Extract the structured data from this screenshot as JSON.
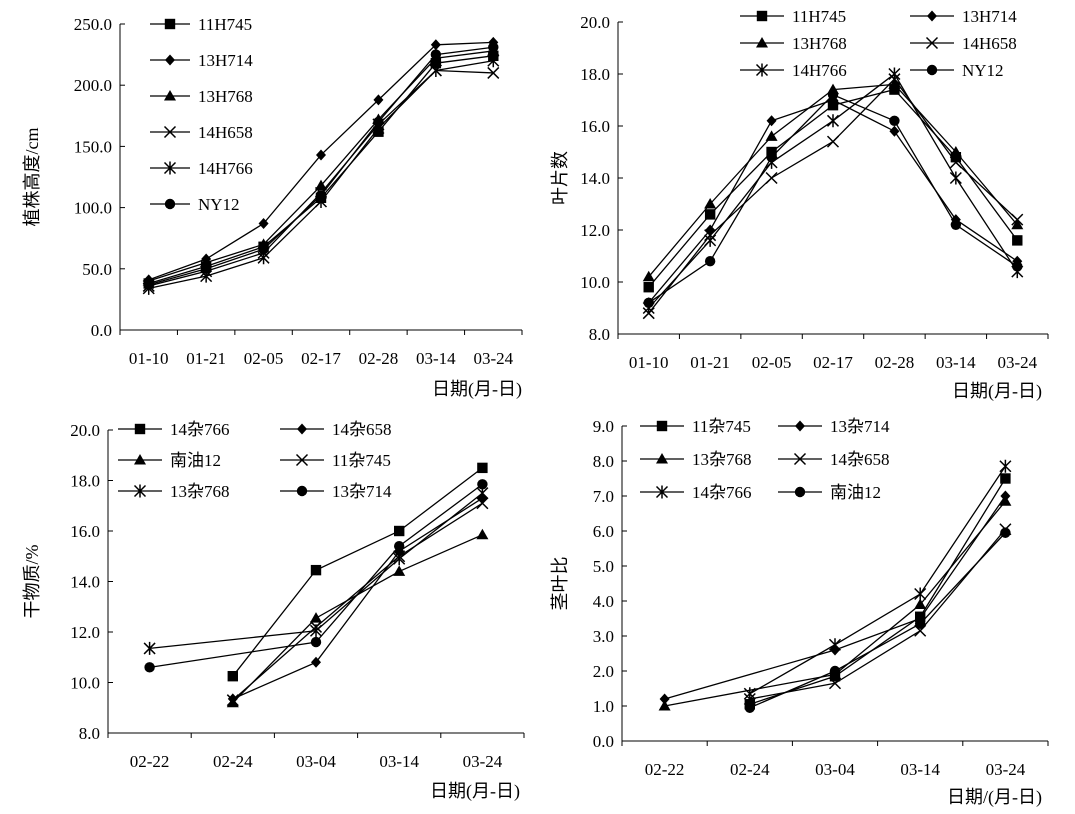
{
  "chart_data": [
    {
      "type": "line",
      "xlabel": "日期(月-日)",
      "ylabel": "植株高度/cm",
      "categories": [
        "01-10",
        "01-21",
        "02-05",
        "02-17",
        "02-28",
        "03-14",
        "03-24"
      ],
      "ylim": [
        0,
        250
      ],
      "yticks": [
        "0.0",
        "50.0",
        "100.0",
        "150.0",
        "200.0",
        "250.0"
      ],
      "grid": false,
      "legend": "top-left",
      "series": [
        {
          "name": "11H745",
          "marker": "square",
          "values": [
            38,
            52,
            68,
            108,
            162,
            218,
            224
          ]
        },
        {
          "name": "13H714",
          "marker": "diamond",
          "values": [
            41,
            58,
            87,
            143,
            188,
            233,
            235
          ]
        },
        {
          "name": "13H768",
          "marker": "triangle",
          "values": [
            40,
            55,
            70,
            118,
            172,
            222,
            228
          ]
        },
        {
          "name": "14H658",
          "marker": "x",
          "values": [
            36,
            48,
            63,
            112,
            168,
            212,
            210
          ]
        },
        {
          "name": "14H766",
          "marker": "star",
          "values": [
            34,
            44,
            59,
            105,
            165,
            212,
            220
          ]
        },
        {
          "name": "NY12",
          "marker": "circle",
          "values": [
            37,
            50,
            66,
            110,
            170,
            225,
            231
          ]
        }
      ]
    },
    {
      "type": "line",
      "xlabel": "日期(月-日)",
      "ylabel": "叶片数",
      "categories": [
        "01-10",
        "01-21",
        "02-05",
        "02-17",
        "02-28",
        "03-14",
        "03-24"
      ],
      "ylim": [
        8,
        20
      ],
      "yticks": [
        "8.0",
        "10.0",
        "12.0",
        "14.0",
        "16.0",
        "18.0",
        "20.0"
      ],
      "grid": false,
      "legend": "top",
      "series": [
        {
          "name": "11H745",
          "marker": "square",
          "values": [
            9.8,
            12.6,
            15.0,
            16.8,
            17.4,
            14.8,
            11.6
          ]
        },
        {
          "name": "13H714",
          "marker": "diamond",
          "values": [
            9.2,
            12.0,
            16.2,
            17.0,
            15.8,
            12.4,
            10.8
          ]
        },
        {
          "name": "13H768",
          "marker": "triangle",
          "values": [
            10.2,
            13.0,
            15.6,
            17.4,
            17.6,
            15.0,
            12.2
          ]
        },
        {
          "name": "14H658",
          "marker": "x",
          "values": [
            8.8,
            11.8,
            14.0,
            15.4,
            17.8,
            14.6,
            12.4
          ]
        },
        {
          "name": "14H766",
          "marker": "star",
          "values": [
            9.0,
            11.6,
            14.6,
            16.2,
            18.0,
            14.0,
            10.4
          ]
        },
        {
          "name": "NY12",
          "marker": "circle",
          "values": [
            9.2,
            10.8,
            14.8,
            17.2,
            16.2,
            12.2,
            10.6
          ]
        }
      ]
    },
    {
      "type": "line",
      "xlabel": "日期(月-日)",
      "ylabel": "干物质/%",
      "categories": [
        "02-22",
        "02-24",
        "03-04",
        "03-14",
        "03-24"
      ],
      "ylim": [
        8,
        20
      ],
      "yticks": [
        "8.0",
        "10.0",
        "12.0",
        "14.0",
        "16.0",
        "18.0",
        "20.0"
      ],
      "grid": false,
      "legend": "top",
      "series": [
        {
          "name": "14杂766",
          "marker": "square",
          "values": [
            null,
            10.25,
            14.45,
            16.0,
            18.5
          ]
        },
        {
          "name": "14杂658",
          "marker": "diamond",
          "values": [
            null,
            9.35,
            10.8,
            15.2,
            17.3
          ]
        },
        {
          "name": "南油12",
          "marker": "triangle",
          "values": [
            null,
            9.2,
            12.55,
            14.4,
            15.85
          ]
        },
        {
          "name": "11杂745",
          "marker": "x",
          "values": [
            null,
            9.3,
            12.2,
            15.0,
            17.1
          ]
        },
        {
          "name": "13杂768",
          "marker": "star",
          "values": [
            11.35,
            null,
            12.05,
            14.9,
            17.5
          ]
        },
        {
          "name": "13杂714",
          "marker": "circle",
          "values": [
            10.6,
            null,
            11.6,
            15.4,
            17.85
          ]
        }
      ]
    },
    {
      "type": "line",
      "xlabel": "日期/(月-日)",
      "ylabel": "茎叶比",
      "categories": [
        "02-22",
        "02-24",
        "03-04",
        "03-14",
        "03-24"
      ],
      "ylim": [
        0,
        9
      ],
      "yticks": [
        "0.0",
        "1.0",
        "2.0",
        "3.0",
        "4.0",
        "5.0",
        "6.0",
        "7.0",
        "8.0",
        "9.0"
      ],
      "grid": false,
      "legend": "top",
      "series": [
        {
          "name": "11杂745",
          "marker": "square",
          "values": [
            null,
            1.05,
            1.85,
            3.55,
            7.5
          ]
        },
        {
          "name": "13杂714",
          "marker": "diamond",
          "values": [
            1.2,
            null,
            2.6,
            3.5,
            7.0
          ]
        },
        {
          "name": "13杂768",
          "marker": "triangle",
          "values": [
            1.0,
            null,
            1.9,
            3.9,
            6.85
          ]
        },
        {
          "name": "14杂658",
          "marker": "x",
          "values": [
            null,
            1.2,
            1.65,
            3.15,
            6.05
          ]
        },
        {
          "name": "14杂766",
          "marker": "star",
          "values": [
            null,
            1.35,
            2.75,
            4.2,
            7.85
          ]
        },
        {
          "name": "南油12",
          "marker": "circle",
          "values": [
            null,
            0.95,
            2.0,
            3.35,
            5.95
          ]
        }
      ]
    }
  ]
}
